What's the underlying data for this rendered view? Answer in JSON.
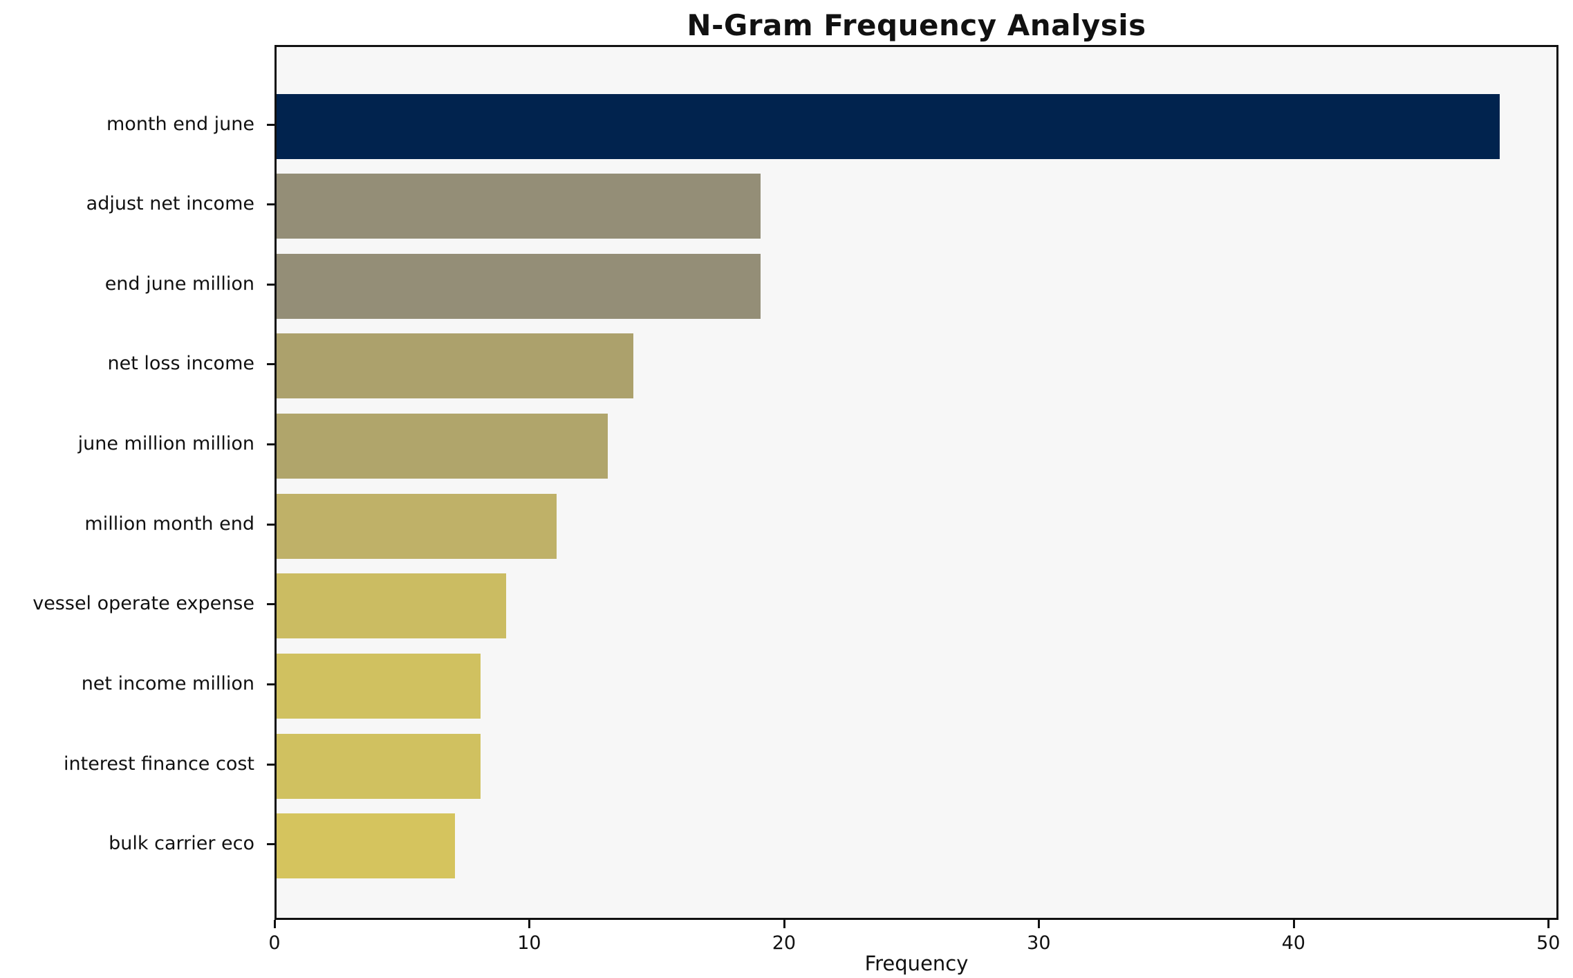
{
  "title": "N-Gram Frequency Analysis",
  "chart_data": {
    "type": "bar",
    "orientation": "horizontal",
    "title": "N-Gram Frequency Analysis",
    "xlabel": "Frequency",
    "ylabel": "",
    "categories": [
      "month end june",
      "adjust net income",
      "end june million",
      "net loss income",
      "june million million",
      "million month end",
      "vessel operate expense",
      "net income million",
      "interest finance cost",
      "bulk carrier eco"
    ],
    "values": [
      48,
      19,
      19,
      14,
      13,
      11,
      9,
      8,
      8,
      7
    ],
    "bar_colors": [
      "#01234e",
      "#948e77",
      "#948e77",
      "#aca16c",
      "#b0a56b",
      "#bfb168",
      "#cbbc62",
      "#d0c160",
      "#d0c160",
      "#d5c45e"
    ],
    "xlim": [
      0,
      50.4
    ],
    "x_ticks": [
      0,
      10,
      20,
      30,
      40,
      50
    ],
    "grid": false,
    "legend": "none",
    "plot_bg_color": "#f7f7f7",
    "spine_color": "#111111"
  }
}
